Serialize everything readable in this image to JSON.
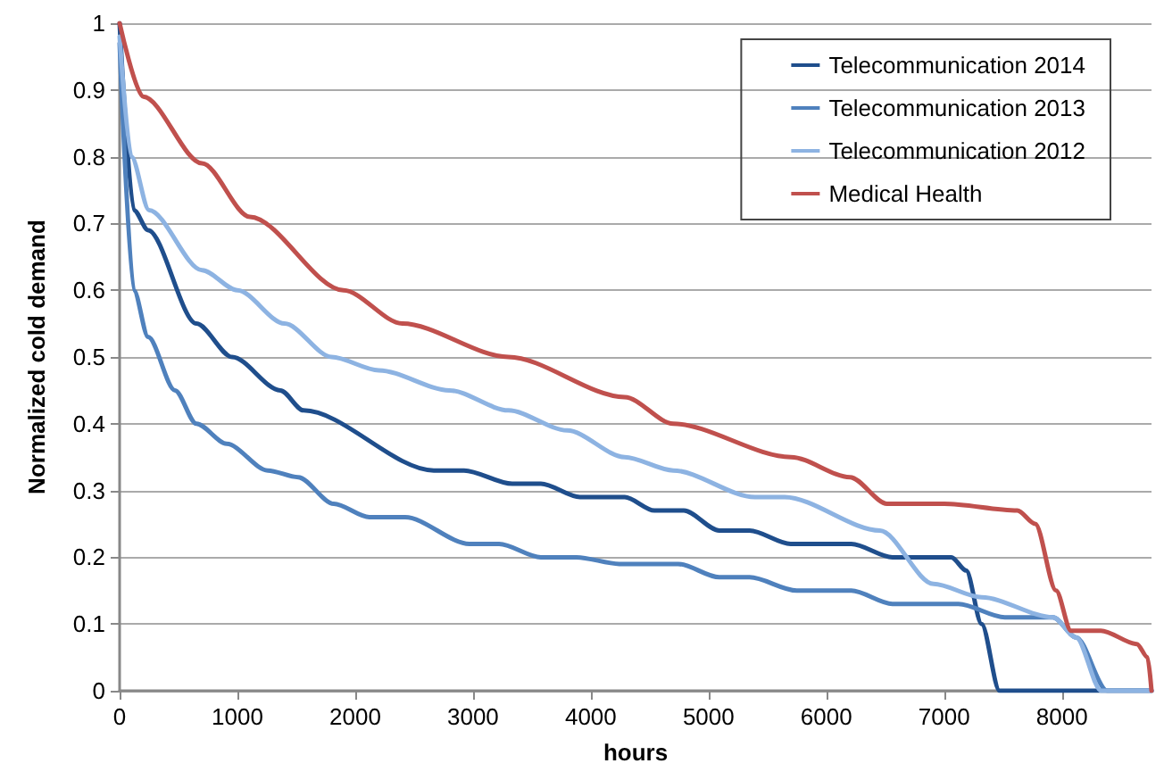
{
  "chart_data": {
    "type": "line",
    "xlabel": "hours",
    "ylabel": "Normalized cold demand",
    "xlim": [
      0,
      8760
    ],
    "xticks": [
      0,
      1000,
      2000,
      3000,
      4000,
      5000,
      6000,
      7000,
      8000
    ],
    "ylim": [
      0,
      1
    ],
    "yticks": [
      0,
      0.1,
      0.2,
      0.3,
      0.4,
      0.5,
      0.6,
      0.7,
      0.8,
      0.9,
      1
    ],
    "grid": "y",
    "legend": "top right",
    "marker": "none",
    "line_style": "solid",
    "series": [
      {
        "name": "Telecommunication 2014",
        "color": "#1f4e8c",
        "x": [
          0,
          121,
          242,
          652,
          955,
          1364,
          1561,
          2667,
          2924,
          3333,
          3576,
          3909,
          4136,
          4288,
          4540,
          4790,
          5091,
          5348,
          5697,
          6212,
          6561,
          7061,
          7187,
          7318,
          7470,
          7700,
          8200,
          8760
        ],
        "values": [
          1,
          0.72,
          0.69,
          0.55,
          0.5,
          0.45,
          0.42,
          0.33,
          0.33,
          0.31,
          0.31,
          0.29,
          0.29,
          0.29,
          0.27,
          0.27,
          0.24,
          0.24,
          0.22,
          0.22,
          0.2,
          0.2,
          0.18,
          0.1,
          0,
          0,
          0,
          0
        ]
      },
      {
        "name": "Telecommunication 2013",
        "color": "#4f81bd",
        "x": [
          0,
          121,
          242,
          470,
          652,
          909,
          1258,
          1515,
          1818,
          2121,
          2424,
          2970,
          3222,
          3576,
          3879,
          4242,
          4742,
          5091,
          5348,
          5748,
          6212,
          6561,
          7121,
          7515,
          7924,
          8121,
          8384,
          8760
        ],
        "values": [
          0.97,
          0.6,
          0.53,
          0.45,
          0.4,
          0.37,
          0.33,
          0.32,
          0.28,
          0.26,
          0.26,
          0.22,
          0.22,
          0.2,
          0.2,
          0.19,
          0.19,
          0.17,
          0.17,
          0.15,
          0.15,
          0.13,
          0.13,
          0.11,
          0.11,
          0.08,
          0,
          0
        ]
      },
      {
        "name": "Telecommunication 2012",
        "color": "#8db3e2",
        "x": [
          0,
          100,
          250,
          700,
          1000,
          1400,
          1800,
          2200,
          2800,
          3300,
          3800,
          4288,
          4700,
          5394,
          5646,
          6455,
          6909,
          7318,
          7924,
          8120,
          8333,
          8760
        ],
        "values": [
          0.98,
          0.8,
          0.72,
          0.63,
          0.6,
          0.55,
          0.5,
          0.48,
          0.45,
          0.42,
          0.39,
          0.35,
          0.33,
          0.29,
          0.29,
          0.24,
          0.16,
          0.14,
          0.11,
          0.08,
          0,
          0
        ]
      },
      {
        "name": "Medical Health",
        "color": "#c0504d",
        "x": [
          0,
          200,
          700,
          1106,
          1900,
          2400,
          3300,
          4288,
          4700,
          5700,
          6200,
          6515,
          7000,
          7621,
          7773,
          7950,
          8076,
          8330,
          8636,
          8727,
          8760
        ],
        "values": [
          1,
          0.89,
          0.79,
          0.71,
          0.6,
          0.55,
          0.5,
          0.44,
          0.4,
          0.35,
          0.32,
          0.28,
          0.28,
          0.27,
          0.25,
          0.15,
          0.09,
          0.09,
          0.07,
          0.05,
          0
        ]
      }
    ]
  }
}
